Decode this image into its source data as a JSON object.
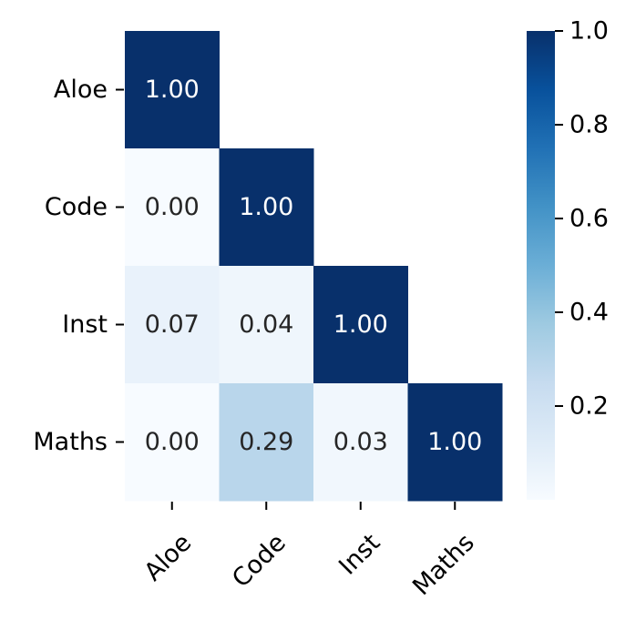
{
  "chart_data": {
    "type": "heatmap",
    "title": "",
    "xlabel": "",
    "ylabel": "",
    "row_labels": [
      "Aloe",
      "Code",
      "Inst",
      "Maths"
    ],
    "col_labels": [
      "Aloe",
      "Code",
      "Inst",
      "Maths"
    ],
    "matrix": [
      [
        1.0,
        null,
        null,
        null
      ],
      [
        0.0,
        1.0,
        null,
        null
      ],
      [
        0.07,
        0.04,
        1.0,
        null
      ],
      [
        0.0,
        0.29,
        0.03,
        1.0
      ]
    ],
    "mask": "upper-triangle",
    "annotation_format": "0.00",
    "colormap": "Blues",
    "colorbar": {
      "range": [
        0.0,
        1.0
      ],
      "ticks": [
        0.2,
        0.4,
        0.6,
        0.8,
        1.0
      ],
      "tick_labels": [
        "0.2",
        "0.4",
        "0.6",
        "0.8",
        "1.0"
      ],
      "position": "right"
    },
    "x_tick_rotation": 45,
    "grid": false,
    "colors": {
      "low": "#f7fbff",
      "high": "#08306b",
      "dark_text": "#262626",
      "light_text": "#ffffff"
    }
  }
}
